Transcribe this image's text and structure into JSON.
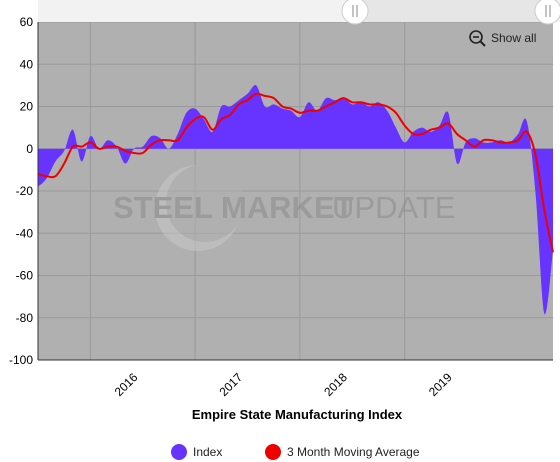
{
  "chart_data": {
    "type": "area",
    "title": "Empire State Manufacturing Index",
    "xlabel": "",
    "ylabel": "",
    "ylim": [
      -100,
      60
    ],
    "yticks": [
      -100,
      -80,
      -60,
      -40,
      -20,
      0,
      20,
      40,
      60
    ],
    "year_labels": [
      "2016",
      "2017",
      "2018",
      "2019"
    ],
    "grid": true,
    "legend_position": "bottom-center",
    "plot_background": "#b0b0b0",
    "x": [
      "2015-07",
      "2015-08",
      "2015-09",
      "2015-10",
      "2015-11",
      "2015-12",
      "2016-01",
      "2016-02",
      "2016-03",
      "2016-04",
      "2016-05",
      "2016-06",
      "2016-07",
      "2016-08",
      "2016-09",
      "2016-10",
      "2016-11",
      "2016-12",
      "2017-01",
      "2017-02",
      "2017-03",
      "2017-04",
      "2017-05",
      "2017-06",
      "2017-07",
      "2017-08",
      "2017-09",
      "2017-10",
      "2017-11",
      "2017-12",
      "2018-01",
      "2018-02",
      "2018-03",
      "2018-04",
      "2018-05",
      "2018-06",
      "2018-07",
      "2018-08",
      "2018-09",
      "2018-10",
      "2018-11",
      "2018-12",
      "2019-01",
      "2019-02",
      "2019-03",
      "2019-04",
      "2019-05",
      "2019-06",
      "2019-07",
      "2019-08",
      "2019-09",
      "2019-10",
      "2019-11",
      "2019-12",
      "2020-01",
      "2020-02",
      "2020-03",
      "2020-04",
      "2020-05",
      "2020-06"
    ],
    "series": [
      {
        "name": "Index",
        "color": "#6633ff",
        "style": "area",
        "values": [
          -18,
          -14,
          -6,
          -1,
          9,
          -6,
          6,
          0,
          4,
          1,
          -7,
          0,
          1,
          6,
          5,
          0,
          7,
          17,
          19,
          14,
          8,
          20,
          20,
          23,
          26,
          30,
          20,
          21,
          19,
          18,
          15,
          22,
          18,
          24,
          23,
          24,
          21,
          22,
          20,
          22,
          18,
          10,
          3,
          8,
          10,
          8,
          11,
          17,
          -7,
          3,
          5,
          3,
          3,
          4,
          3,
          7,
          13,
          -21,
          -78,
          -48
        ]
      },
      {
        "name": "3 Month Moving Average",
        "color": "#ee0000",
        "style": "line",
        "values": [
          -12,
          -13,
          -13,
          -7,
          1,
          1,
          3,
          0,
          1,
          1,
          -1,
          -2,
          -2,
          2,
          4,
          4,
          4,
          10,
          14,
          15,
          9,
          14,
          16,
          21,
          23,
          26,
          25,
          24,
          20,
          19,
          17,
          18,
          18,
          20,
          22,
          24,
          22,
          22,
          21,
          21,
          20,
          17,
          11,
          7,
          7,
          9,
          10,
          12,
          7,
          4,
          1,
          4,
          4,
          3,
          3,
          4,
          8,
          -3,
          -29,
          -49
        ]
      }
    ]
  },
  "controls": {
    "show_all_label": "Show all",
    "zoom_icon": "magnifier-minus-icon"
  },
  "watermark": {
    "text_bold": "STEEL MARKET",
    "text_light": "UPDATE"
  }
}
